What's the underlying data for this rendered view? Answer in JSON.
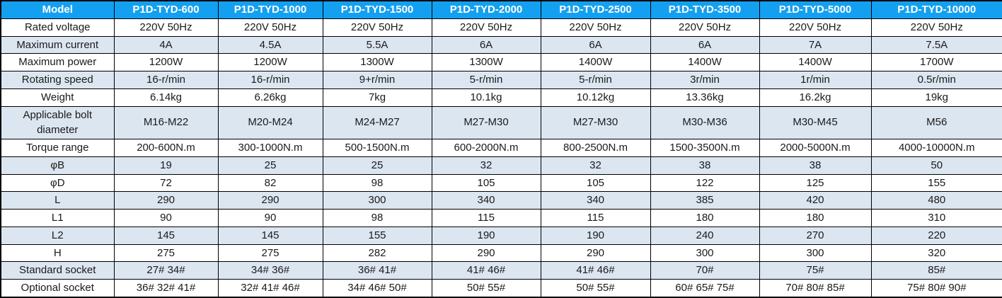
{
  "table": {
    "corner_label": "Model",
    "models": [
      "P1D-TYD-600",
      "P1D-TYD-1000",
      "P1D-TYD-1500",
      "P1D-TYD-2000",
      "P1D-TYD-2500",
      "P1D-TYD-3500",
      "P1D-TYD-5000",
      "P1D-TYD-10000"
    ],
    "rows": [
      {
        "label": "Rated voltage",
        "values": [
          "220V 50Hz",
          "220V 50Hz",
          "220V 50Hz",
          "220V 50Hz",
          "220V 50Hz",
          "220V 50Hz",
          "220V 50Hz",
          "220V 50Hz"
        ]
      },
      {
        "label": "Maximum current",
        "values": [
          "4A",
          "4.5A",
          "5.5A",
          "6A",
          "6A",
          "6A",
          "7A",
          "7.5A"
        ]
      },
      {
        "label": "Maximum power",
        "values": [
          "1200W",
          "1200W",
          "1300W",
          "1300W",
          "1400W",
          "1400W",
          "1400W",
          "1700W"
        ]
      },
      {
        "label": "Rotating speed",
        "values": [
          "16-r/min",
          "16-r/min",
          "9+r/min",
          "5-r/min",
          "5-r/min",
          "3r/min",
          "1r/min",
          "0.5r/min"
        ]
      },
      {
        "label": "Weight",
        "values": [
          "6.14kg",
          "6.26kg",
          "7kg",
          "10.1kg",
          "10.12kg",
          "13.36kg",
          "16.2kg",
          "19kg"
        ]
      },
      {
        "label": "Applicable bolt diameter",
        "values": [
          "M16-M22",
          "M20-M24",
          "M24-M27",
          "M27-M30",
          "M27-M30",
          "M30-M36",
          "M30-M45",
          "M56"
        ]
      },
      {
        "label": "Torque range",
        "values": [
          "200-600N.m",
          "300-1000N.m",
          "500-1500N.m",
          "600-2000N.m",
          "800-2500N.m",
          "1500-3500N.m",
          "2000-5000N.m",
          "4000-10000N.m"
        ]
      },
      {
        "label": "φB",
        "values": [
          "19",
          "25",
          "25",
          "32",
          "32",
          "38",
          "38",
          "50"
        ]
      },
      {
        "label": "φD",
        "values": [
          "72",
          "82",
          "98",
          "105",
          "105",
          "122",
          "125",
          "155"
        ]
      },
      {
        "label": "L",
        "values": [
          "290",
          "290",
          "300",
          "340",
          "340",
          "385",
          "420",
          "480"
        ]
      },
      {
        "label": "L1",
        "values": [
          "90",
          "90",
          "98",
          "115",
          "115",
          "180",
          "180",
          "310"
        ]
      },
      {
        "label": "L2",
        "values": [
          "145",
          "145",
          "155",
          "190",
          "190",
          "240",
          "270",
          "220"
        ]
      },
      {
        "label": "H",
        "values": [
          "275",
          "275",
          "282",
          "290",
          "290",
          "300",
          "300",
          "320"
        ]
      },
      {
        "label": "Standard socket",
        "values": [
          "27# 34#",
          "34# 36#",
          "36# 41#",
          "41# 46#",
          "41# 46#",
          "70#",
          "75#",
          "85#"
        ]
      },
      {
        "label": "Optional socket",
        "values": [
          "36# 32# 41#",
          "32# 41# 46#",
          "34# 46# 50#",
          "50# 55#",
          "50# 55#",
          "60# 65# 75#",
          "70# 80# 85#",
          "75# 80# 90#"
        ]
      }
    ]
  },
  "colors": {
    "header_bg": "#14a0f0",
    "header_text": "#ffffff",
    "band_bg": "#dce6f1",
    "row_bg": "#ffffff",
    "border": "#000000"
  }
}
